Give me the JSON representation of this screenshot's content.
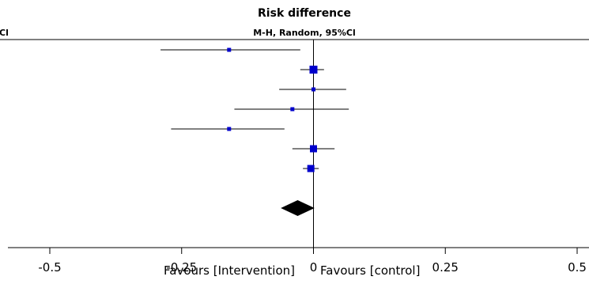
{
  "header": {
    "left_clipped_label": "Cl",
    "title": "Risk difference",
    "subtitle": "M-H, Random, 95%Cl"
  },
  "footer": {
    "favours_left": "Favours [Intervention]",
    "favours_right": "Favours [control]"
  },
  "colors": {
    "marker": "#0000cc",
    "ci_line": "#000000",
    "diamond": "#000000",
    "axis": "#000000"
  },
  "chart_data": {
    "type": "forest",
    "title": "Risk difference",
    "subtitle": "M-H, Random, 95%Cl",
    "xlim": [
      -0.5,
      0.5
    ],
    "x_ticks": [
      -0.5,
      -0.25,
      0,
      0.25,
      0.5
    ],
    "x_tick_labels": [
      "-0.5",
      "-0.25",
      "0",
      "0.25",
      "0.5"
    ],
    "studies": [
      {
        "estimate": -0.16,
        "ci": [
          -0.29,
          -0.025
        ],
        "weight": "small"
      },
      {
        "estimate": 0.0,
        "ci": [
          -0.025,
          0.02
        ],
        "weight": "large"
      },
      {
        "estimate": 0.0,
        "ci": [
          -0.065,
          0.062
        ],
        "weight": "small"
      },
      {
        "estimate": -0.04,
        "ci": [
          -0.15,
          0.067
        ],
        "weight": "small"
      },
      {
        "estimate": -0.16,
        "ci": [
          -0.27,
          -0.055
        ],
        "weight": "small"
      },
      {
        "estimate": 0.0,
        "ci": [
          -0.04,
          0.04
        ],
        "weight": "medium"
      },
      {
        "estimate": -0.005,
        "ci": [
          -0.02,
          0.01
        ],
        "weight": "medium"
      }
    ],
    "pooled": {
      "estimate": -0.03,
      "ci": [
        -0.062,
        0.002
      ]
    }
  }
}
